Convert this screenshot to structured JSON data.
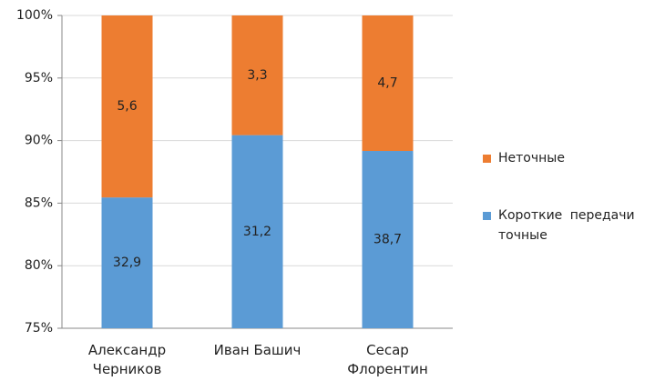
{
  "chart_data": {
    "type": "bar",
    "stacking": "percent",
    "categories": [
      "Александр Черников",
      "Иван Башич",
      "Сесар Флорентин"
    ],
    "series": [
      {
        "name": "Короткие передачи точные",
        "color": "#5b9bd5",
        "values": [
          32.9,
          31.2,
          38.7
        ],
        "value_labels": [
          "32,9",
          "31,2",
          "38,7"
        ]
      },
      {
        "name": "Неточные",
        "color": "#ed7d31",
        "values": [
          5.6,
          3.3,
          4.7
        ],
        "value_labels": [
          "5,6",
          "3,3",
          "4,7"
        ]
      }
    ],
    "ylim": [
      75,
      100
    ],
    "yticks": [
      {
        "value": 75,
        "label": "75%"
      },
      {
        "value": 80,
        "label": "80%"
      },
      {
        "value": 85,
        "label": "85%"
      },
      {
        "value": 90,
        "label": "90%"
      },
      {
        "value": 95,
        "label": "95%"
      },
      {
        "value": 100,
        "label": "100%"
      }
    ],
    "grid": true,
    "legend": "right"
  }
}
